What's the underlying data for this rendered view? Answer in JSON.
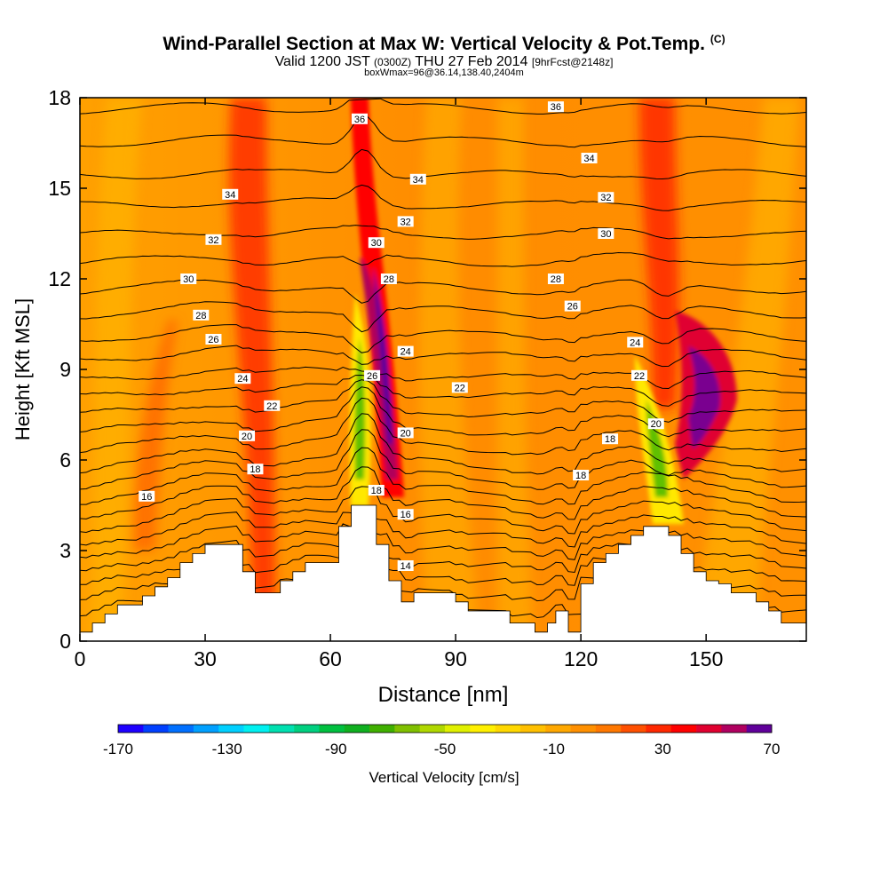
{
  "header": {
    "title": "Wind-Parallel Section at Max W: Vertical Velocity & Pot.Temp.",
    "copyright": "(C)",
    "valid_prefix": "Valid 1200 JST",
    "valid_utc": "(0300Z)",
    "valid_date": "THU 27 Feb 2014",
    "forecast": "[9hrFcst@2148z]",
    "box_info": "boxWmax=96@36.14,138.40,2404m"
  },
  "chart_data": {
    "type": "heatmap",
    "xlabel": "Distance [nm]",
    "ylabel": "Height [Kft MSL]",
    "xlim": [
      0,
      174
    ],
    "ylim": [
      0,
      18
    ],
    "x_ticks": [
      0,
      30,
      60,
      90,
      120,
      150
    ],
    "y_ticks": [
      0,
      3,
      6,
      9,
      12,
      15,
      18
    ],
    "colorbar": {
      "label": "Vertical Velocity [cm/s]",
      "min": -170,
      "max": 70,
      "step": 10,
      "tick_labels": [
        "-170",
        "-130",
        "-90",
        "-50",
        "-10",
        "30",
        "70"
      ],
      "colors": [
        "#1e00ff",
        "#0040ff",
        "#0070ff",
        "#00a0ff",
        "#00d0ff",
        "#00f0f0",
        "#00e0b0",
        "#00d080",
        "#00c040",
        "#10b020",
        "#40b000",
        "#80c000",
        "#b0d800",
        "#e0f000",
        "#fff000",
        "#ffd800",
        "#ffc000",
        "#ffa800",
        "#ff9000",
        "#ff7800",
        "#ff5000",
        "#ff2800",
        "#ff0000",
        "#e00030",
        "#b00060",
        "#60009a"
      ]
    },
    "terrain_kft": [
      [
        0,
        0.3
      ],
      [
        3,
        0.3
      ],
      [
        3,
        0.6
      ],
      [
        6,
        0.6
      ],
      [
        6,
        0.9
      ],
      [
        9,
        0.9
      ],
      [
        9,
        1.2
      ],
      [
        15,
        1.2
      ],
      [
        15,
        1.5
      ],
      [
        18,
        1.5
      ],
      [
        18,
        1.8
      ],
      [
        21,
        1.8
      ],
      [
        21,
        2.1
      ],
      [
        24,
        2.1
      ],
      [
        24,
        2.6
      ],
      [
        27,
        2.6
      ],
      [
        27,
        2.9
      ],
      [
        30,
        2.9
      ],
      [
        30,
        3.2
      ],
      [
        39,
        3.2
      ],
      [
        39,
        2.3
      ],
      [
        42,
        2.3
      ],
      [
        42,
        1.6
      ],
      [
        48,
        1.6
      ],
      [
        48,
        2.0
      ],
      [
        51,
        2.0
      ],
      [
        51,
        2.3
      ],
      [
        54,
        2.3
      ],
      [
        54,
        2.6
      ],
      [
        62,
        2.6
      ],
      [
        62,
        3.8
      ],
      [
        65,
        3.8
      ],
      [
        65,
        4.5
      ],
      [
        71,
        4.5
      ],
      [
        71,
        3.2
      ],
      [
        74,
        3.2
      ],
      [
        74,
        2.0
      ],
      [
        77,
        2.0
      ],
      [
        77,
        1.3
      ],
      [
        80,
        1.3
      ],
      [
        80,
        1.6
      ],
      [
        90,
        1.6
      ],
      [
        90,
        1.3
      ],
      [
        93,
        1.3
      ],
      [
        93,
        1.0
      ],
      [
        103,
        1.0
      ],
      [
        103,
        0.6
      ],
      [
        109,
        0.6
      ],
      [
        109,
        0.3
      ],
      [
        112,
        0.3
      ],
      [
        112,
        0.6
      ],
      [
        114,
        0.6
      ],
      [
        114,
        1.0
      ],
      [
        117,
        1.0
      ],
      [
        117,
        0.3
      ],
      [
        120,
        0.3
      ],
      [
        120,
        1.9
      ],
      [
        123,
        1.9
      ],
      [
        123,
        2.6
      ],
      [
        126,
        2.6
      ],
      [
        126,
        2.9
      ],
      [
        129,
        2.9
      ],
      [
        129,
        3.2
      ],
      [
        132,
        3.2
      ],
      [
        132,
        3.5
      ],
      [
        135,
        3.5
      ],
      [
        135,
        3.8
      ],
      [
        141,
        3.8
      ],
      [
        141,
        3.5
      ],
      [
        144,
        3.5
      ],
      [
        144,
        2.9
      ],
      [
        147,
        2.9
      ],
      [
        147,
        2.3
      ],
      [
        150,
        2.3
      ],
      [
        150,
        2.0
      ],
      [
        153,
        2.0
      ],
      [
        153,
        1.9
      ],
      [
        156,
        1.9
      ],
      [
        156,
        1.6
      ],
      [
        162,
        1.6
      ],
      [
        162,
        1.3
      ],
      [
        165,
        1.3
      ],
      [
        165,
        1.0
      ],
      [
        168,
        1.0
      ],
      [
        168,
        0.6
      ],
      [
        174,
        0.6
      ]
    ],
    "theta_levels": [
      {
        "label": "14",
        "base": 0.6
      },
      {
        "label": "",
        "base": 1.1
      },
      {
        "label": "",
        "base": 1.6
      },
      {
        "label": "16",
        "base": 2.1
      },
      {
        "label": "",
        "base": 2.6
      },
      {
        "label": "",
        "base": 3.1
      },
      {
        "label": "18",
        "base": 3.6
      },
      {
        "label": "",
        "base": 4.1
      },
      {
        "label": "20",
        "base": 4.6
      },
      {
        "label": "",
        "base": 5.1
      },
      {
        "label": "22",
        "base": 5.6
      },
      {
        "label": "",
        "base": 6.2
      },
      {
        "label": "24",
        "base": 6.8
      },
      {
        "label": "",
        "base": 7.4
      },
      {
        "label": "26",
        "base": 8.0
      },
      {
        "label": "",
        "base": 8.6
      },
      {
        "label": "28",
        "base": 9.3
      },
      {
        "label": "",
        "base": 10.0
      },
      {
        "label": "30",
        "base": 10.8
      },
      {
        "label": "",
        "base": 11.6
      },
      {
        "label": "32",
        "base": 12.5
      },
      {
        "label": "",
        "base": 13.4
      },
      {
        "label": "34",
        "base": 14.4
      },
      {
        "label": "",
        "base": 15.4
      },
      {
        "label": "36",
        "base": 16.5
      },
      {
        "label": "",
        "base": 17.6
      }
    ],
    "contour_labels": [
      {
        "text": "36",
        "x": 67,
        "y": 17.3
      },
      {
        "text": "36",
        "x": 114,
        "y": 17.7
      },
      {
        "text": "34",
        "x": 36,
        "y": 14.8
      },
      {
        "text": "34",
        "x": 81,
        "y": 15.3
      },
      {
        "text": "34",
        "x": 122,
        "y": 16.0
      },
      {
        "text": "32",
        "x": 32,
        "y": 13.3
      },
      {
        "text": "32",
        "x": 78,
        "y": 13.9
      },
      {
        "text": "32",
        "x": 126,
        "y": 14.7
      },
      {
        "text": "30",
        "x": 26,
        "y": 12.0
      },
      {
        "text": "30",
        "x": 71,
        "y": 13.2
      },
      {
        "text": "30",
        "x": 126,
        "y": 13.5
      },
      {
        "text": "28",
        "x": 29,
        "y": 10.8
      },
      {
        "text": "28",
        "x": 74,
        "y": 12.0
      },
      {
        "text": "28",
        "x": 114,
        "y": 12.0
      },
      {
        "text": "26",
        "x": 32,
        "y": 10.0
      },
      {
        "text": "26",
        "x": 70,
        "y": 8.8
      },
      {
        "text": "26",
        "x": 118,
        "y": 11.1
      },
      {
        "text": "24",
        "x": 39,
        "y": 8.7
      },
      {
        "text": "24",
        "x": 78,
        "y": 9.6
      },
      {
        "text": "24",
        "x": 133,
        "y": 9.9
      },
      {
        "text": "22",
        "x": 46,
        "y": 7.8
      },
      {
        "text": "22",
        "x": 91,
        "y": 8.4
      },
      {
        "text": "22",
        "x": 134,
        "y": 8.8
      },
      {
        "text": "20",
        "x": 40,
        "y": 6.8
      },
      {
        "text": "20",
        "x": 78,
        "y": 6.9
      },
      {
        "text": "20",
        "x": 138,
        "y": 7.2
      },
      {
        "text": "18",
        "x": 42,
        "y": 5.7
      },
      {
        "text": "18",
        "x": 71,
        "y": 5.0
      },
      {
        "text": "18",
        "x": 127,
        "y": 6.7
      },
      {
        "text": "18",
        "x": 120,
        "y": 5.5
      },
      {
        "text": "16",
        "x": 16,
        "y": 4.8
      },
      {
        "text": "16",
        "x": 78,
        "y": 4.2
      },
      {
        "text": "14",
        "x": 78,
        "y": 2.5
      }
    ]
  }
}
